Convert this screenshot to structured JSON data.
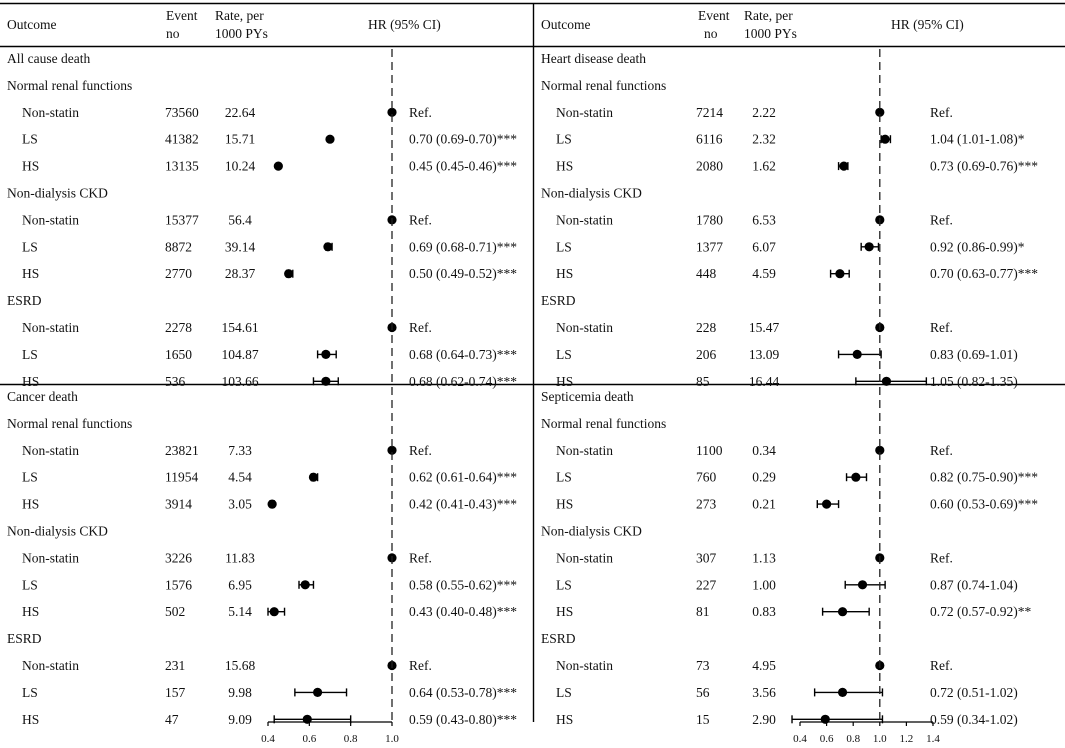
{
  "header": {
    "outcome": "Outcome",
    "event_line1": "Event",
    "event_line2": "no",
    "rate_line1": "Rate, per",
    "rate_line2": "1000 PYs",
    "hr": "HR (95% CI)"
  },
  "chart_data": [
    {
      "type": "forest",
      "outcome": "All cause death",
      "xlim": [
        0.4,
        1.0
      ],
      "ticks": [
        0.4,
        0.6,
        0.8,
        1.0
      ],
      "tick_labels": [],
      "groups": [
        {
          "label": "Normal renal functions",
          "rows": [
            {
              "label": "Non-statin",
              "events": "73560",
              "rate": "22.64",
              "hr": 1.0,
              "lo": 1.0,
              "hi": 1.0,
              "text": "Ref."
            },
            {
              "label": "LS",
              "events": "41382",
              "rate": "15.71",
              "hr": 0.7,
              "lo": 0.69,
              "hi": 0.7,
              "text": "0.70 (0.69-0.70)***"
            },
            {
              "label": "HS",
              "events": "13135",
              "rate": "10.24",
              "hr": 0.45,
              "lo": 0.45,
              "hi": 0.46,
              "text": "0.45 (0.45-0.46)***"
            }
          ]
        },
        {
          "label": "Non-dialysis CKD",
          "rows": [
            {
              "label": "Non-statin",
              "events": "15377",
              "rate": "56.4",
              "hr": 1.0,
              "lo": 1.0,
              "hi": 1.0,
              "text": "Ref."
            },
            {
              "label": "LS",
              "events": "8872",
              "rate": "39.14",
              "hr": 0.69,
              "lo": 0.68,
              "hi": 0.71,
              "text": "0.69 (0.68-0.71)***"
            },
            {
              "label": "HS",
              "events": "2770",
              "rate": "28.37",
              "hr": 0.5,
              "lo": 0.49,
              "hi": 0.52,
              "text": "0.50 (0.49-0.52)***"
            }
          ]
        },
        {
          "label": "ESRD",
          "rows": [
            {
              "label": "Non-statin",
              "events": "2278",
              "rate": "154.61",
              "hr": 1.0,
              "lo": 1.0,
              "hi": 1.0,
              "text": "Ref."
            },
            {
              "label": "LS",
              "events": "1650",
              "rate": "104.87",
              "hr": 0.68,
              "lo": 0.64,
              "hi": 0.73,
              "text": "0.68 (0.64-0.73)***"
            },
            {
              "label": "HS",
              "events": "536",
              "rate": "103.66",
              "hr": 0.68,
              "lo": 0.62,
              "hi": 0.74,
              "text": "0.68 (0.62-0.74)***"
            }
          ]
        }
      ]
    },
    {
      "type": "forest",
      "outcome": "Heart disease death",
      "xlim": [
        0.4,
        1.4
      ],
      "ticks": [
        0.4,
        0.6,
        0.8,
        1.0,
        1.2,
        1.4
      ],
      "tick_labels": [],
      "groups": [
        {
          "label": "Normal renal functions",
          "rows": [
            {
              "label": "Non-statin",
              "events": "7214",
              "rate": "2.22",
              "hr": 1.0,
              "lo": 1.0,
              "hi": 1.0,
              "text": "Ref."
            },
            {
              "label": "LS",
              "events": "6116",
              "rate": "2.32",
              "hr": 1.04,
              "lo": 1.01,
              "hi": 1.08,
              "text": "1.04 (1.01-1.08)*"
            },
            {
              "label": "HS",
              "events": "2080",
              "rate": "1.62",
              "hr": 0.73,
              "lo": 0.69,
              "hi": 0.76,
              "text": "0.73 (0.69-0.76)***"
            }
          ]
        },
        {
          "label": "Non-dialysis CKD",
          "rows": [
            {
              "label": "Non-statin",
              "events": "1780",
              "rate": "6.53",
              "hr": 1.0,
              "lo": 1.0,
              "hi": 1.0,
              "text": "Ref."
            },
            {
              "label": "LS",
              "events": "1377",
              "rate": "6.07",
              "hr": 0.92,
              "lo": 0.86,
              "hi": 0.99,
              "text": "0.92 (0.86-0.99)*"
            },
            {
              "label": "HS",
              "events": "448",
              "rate": "4.59",
              "hr": 0.7,
              "lo": 0.63,
              "hi": 0.77,
              "text": "0.70 (0.63-0.77)***"
            }
          ]
        },
        {
          "label": "ESRD",
          "rows": [
            {
              "label": "Non-statin",
              "events": "228",
              "rate": "15.47",
              "hr": 1.0,
              "lo": 1.0,
              "hi": 1.0,
              "text": "Ref."
            },
            {
              "label": "LS",
              "events": "206",
              "rate": "13.09",
              "hr": 0.83,
              "lo": 0.69,
              "hi": 1.01,
              "text": "0.83 (0.69-1.01)"
            },
            {
              "label": "HS",
              "events": "85",
              "rate": "16.44",
              "hr": 1.05,
              "lo": 0.82,
              "hi": 1.35,
              "text": "1.05 (0.82-1.35)"
            }
          ]
        }
      ]
    },
    {
      "type": "forest",
      "outcome": "Cancer death",
      "xlim": [
        0.4,
        1.0
      ],
      "ticks": [
        0.4,
        0.6,
        0.8,
        1.0
      ],
      "tick_labels": [
        "0.4",
        "0.6",
        "0.8",
        "1.0"
      ],
      "groups": [
        {
          "label": "Normal renal functions",
          "rows": [
            {
              "label": "Non-statin",
              "events": "23821",
              "rate": "7.33",
              "hr": 1.0,
              "lo": 1.0,
              "hi": 1.0,
              "text": "Ref."
            },
            {
              "label": "LS",
              "events": "11954",
              "rate": "4.54",
              "hr": 0.62,
              "lo": 0.61,
              "hi": 0.64,
              "text": "0.62 (0.61-0.64)***"
            },
            {
              "label": "HS",
              "events": "3914",
              "rate": "3.05",
              "hr": 0.42,
              "lo": 0.41,
              "hi": 0.43,
              "text": "0.42 (0.41-0.43)***"
            }
          ]
        },
        {
          "label": "Non-dialysis CKD",
          "rows": [
            {
              "label": "Non-statin",
              "events": "3226",
              "rate": "11.83",
              "hr": 1.0,
              "lo": 1.0,
              "hi": 1.0,
              "text": "Ref."
            },
            {
              "label": "LS",
              "events": "1576",
              "rate": "6.95",
              "hr": 0.58,
              "lo": 0.55,
              "hi": 0.62,
              "text": "0.58 (0.55-0.62)***"
            },
            {
              "label": "HS",
              "events": "502",
              "rate": "5.14",
              "hr": 0.43,
              "lo": 0.4,
              "hi": 0.48,
              "text": "0.43 (0.40-0.48)***"
            }
          ]
        },
        {
          "label": "ESRD",
          "rows": [
            {
              "label": "Non-statin",
              "events": "231",
              "rate": "15.68",
              "hr": 1.0,
              "lo": 1.0,
              "hi": 1.0,
              "text": "Ref."
            },
            {
              "label": "LS",
              "events": "157",
              "rate": "9.98",
              "hr": 0.64,
              "lo": 0.53,
              "hi": 0.78,
              "text": "0.64 (0.53-0.78)***"
            },
            {
              "label": "HS",
              "events": "47",
              "rate": "9.09",
              "hr": 0.59,
              "lo": 0.43,
              "hi": 0.8,
              "text": "0.59 (0.43-0.80)***"
            }
          ]
        }
      ]
    },
    {
      "type": "forest",
      "outcome": "Septicemia death",
      "xlim": [
        0.4,
        1.4
      ],
      "ticks": [
        0.4,
        0.6,
        0.8,
        1.0,
        1.2,
        1.4
      ],
      "tick_labels": [
        "0.4",
        "0.6",
        "0.8",
        "1.0",
        "1.2",
        "1.4"
      ],
      "groups": [
        {
          "label": "Normal renal functions",
          "rows": [
            {
              "label": "Non-statin",
              "events": "1100",
              "rate": "0.34",
              "hr": 1.0,
              "lo": 1.0,
              "hi": 1.0,
              "text": "Ref."
            },
            {
              "label": "LS",
              "events": "760",
              "rate": "0.29",
              "hr": 0.82,
              "lo": 0.75,
              "hi": 0.9,
              "text": "0.82 (0.75-0.90)***"
            },
            {
              "label": "HS",
              "events": "273",
              "rate": "0.21",
              "hr": 0.6,
              "lo": 0.53,
              "hi": 0.69,
              "text": "0.60 (0.53-0.69)***"
            }
          ]
        },
        {
          "label": "Non-dialysis CKD",
          "rows": [
            {
              "label": "Non-statin",
              "events": "307",
              "rate": "1.13",
              "hr": 1.0,
              "lo": 1.0,
              "hi": 1.0,
              "text": "Ref."
            },
            {
              "label": "LS",
              "events": "227",
              "rate": "1.00",
              "hr": 0.87,
              "lo": 0.74,
              "hi": 1.04,
              "text": "0.87 (0.74-1.04)"
            },
            {
              "label": "HS",
              "events": "81",
              "rate": "0.83",
              "hr": 0.72,
              "lo": 0.57,
              "hi": 0.92,
              "text": "0.72 (0.57-0.92)**"
            }
          ]
        },
        {
          "label": "ESRD",
          "rows": [
            {
              "label": "Non-statin",
              "events": "73",
              "rate": "4.95",
              "hr": 1.0,
              "lo": 1.0,
              "hi": 1.0,
              "text": "Ref."
            },
            {
              "label": "LS",
              "events": "56",
              "rate": "3.56",
              "hr": 0.72,
              "lo": 0.51,
              "hi": 1.02,
              "text": "0.72 (0.51-1.02)"
            },
            {
              "label": "HS",
              "events": "15",
              "rate": "2.90",
              "hr": 0.59,
              "lo": 0.34,
              "hi": 1.02,
              "text": "0.59 (0.34-1.02)"
            }
          ]
        }
      ]
    }
  ]
}
